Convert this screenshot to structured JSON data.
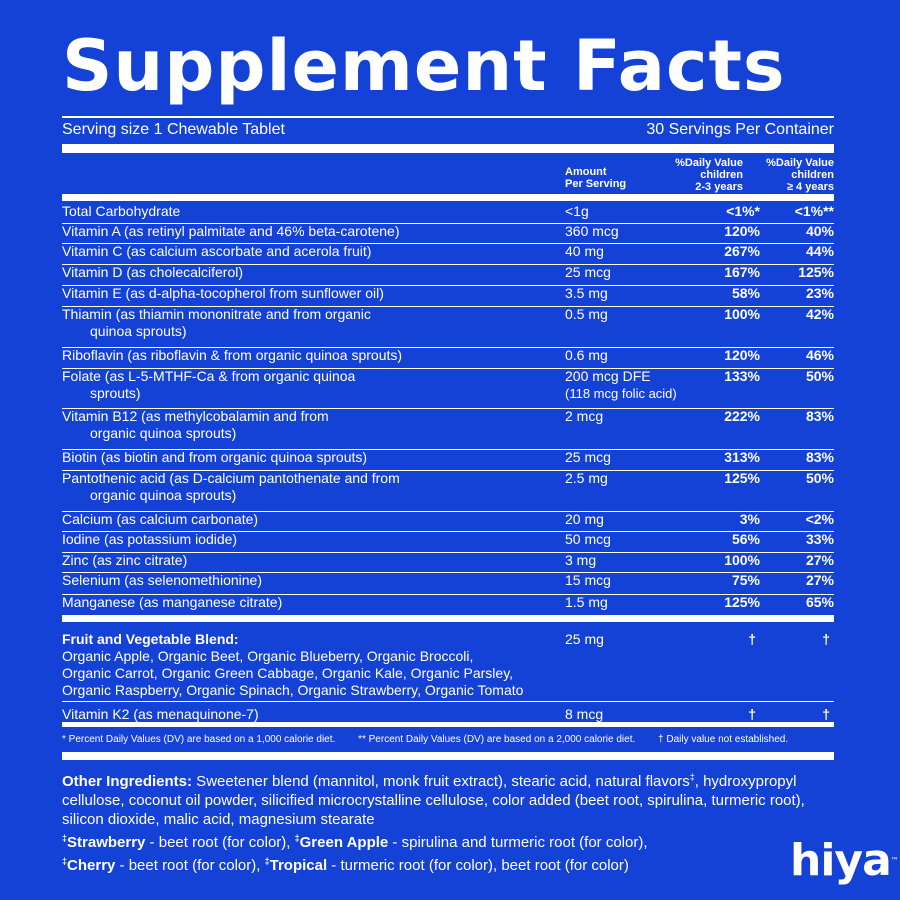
{
  "title": "Supplement Facts",
  "serving_size": "Serving size 1 Chewable Tablet",
  "servings_per_container": "30 Servings Per Container",
  "columns": {
    "amount_1": "Amount",
    "amount_2": "Per Serving",
    "dv1_1": "%Daily Value",
    "dv1_2": "children",
    "dv1_3": "2-3 years",
    "dv2_1": "%Daily Value",
    "dv2_2": "children",
    "dv2_3": "≥ 4 years"
  },
  "nutrients": [
    {
      "name": "Total Carbohydrate",
      "amount": "<1g",
      "dv1": "<1%*",
      "dv2": "<1%**"
    },
    {
      "name": "Vitamin A (as retinyl palmitate and 46% beta-carotene)",
      "amount": "360 mcg",
      "dv1": "120%",
      "dv2": "40%"
    },
    {
      "name": "Vitamin C (as calcium ascorbate and acerola fruit)",
      "amount": "40 mg",
      "dv1": "267%",
      "dv2": "44%"
    },
    {
      "name": "Vitamin D (as cholecalciferol)",
      "amount": "25 mcg",
      "dv1": "167%",
      "dv2": "125%"
    },
    {
      "name": "Vitamin E (as d-alpha-tocopherol from sunflower oil)",
      "amount": "3.5 mg",
      "dv1": "58%",
      "dv2": "23%"
    },
    {
      "name": "Thiamin (as thiamin mononitrate and from organic",
      "name2": "quinoa sprouts)",
      "amount": "0.5 mg",
      "dv1": "100%",
      "dv2": "42%"
    },
    {
      "name": "Riboflavin (as riboflavin & from organic quinoa sprouts)",
      "amount": "0.6 mg",
      "dv1": "120%",
      "dv2": "46%"
    },
    {
      "name": "Folate (as L-5-MTHF-Ca & from organic quinoa",
      "name2": "sprouts)",
      "amount": "200 mcg DFE",
      "amount2": "(118 mcg folic acid)",
      "dv1": "133%",
      "dv2": "50%"
    },
    {
      "name": "Vitamin B12 (as methylcobalamin and from",
      "name2": "organic quinoa sprouts)",
      "amount": "2 mcg",
      "dv1": "222%",
      "dv2": "83%"
    },
    {
      "name": "Biotin (as biotin and from organic quinoa sprouts)",
      "amount": "25 mcg",
      "dv1": "313%",
      "dv2": "83%"
    },
    {
      "name": "Pantothenic acid (as D-calcium pantothenate and from",
      "name2": "organic quinoa sprouts)",
      "amount": "2.5 mg",
      "dv1": "125%",
      "dv2": "50%"
    },
    {
      "name": "Calcium (as calcium carbonate)",
      "amount": "20 mg",
      "dv1": "3%",
      "dv2": "<2%"
    },
    {
      "name": "Iodine (as potassium iodide)",
      "amount": "50 mcg",
      "dv1": "56%",
      "dv2": "33%"
    },
    {
      "name": "Zinc (as zinc citrate)",
      "amount": "3 mg",
      "dv1": "100%",
      "dv2": "27%"
    },
    {
      "name": "Selenium (as selenomethionine)",
      "amount": "15 mcg",
      "dv1": "75%",
      "dv2": "27%"
    },
    {
      "name": "Manganese (as manganese citrate)",
      "amount": "1.5 mg",
      "dv1": "125%",
      "dv2": "65%"
    }
  ],
  "blend": {
    "heading": "Fruit and Vegetable Blend:",
    "line1": "Organic Apple, Organic Beet, Organic Blueberry, Organic Broccoli,",
    "line2": "Organic Carrot, Organic Green Cabbage, Organic Kale, Organic Parsley,",
    "line3": "Organic Raspberry, Organic Spinach, Organic Strawberry, Organic Tomato",
    "amount": "25 mg",
    "dv1": "†",
    "dv2": "†"
  },
  "k2": {
    "name": "Vitamin K2 (as menaquinone-7)",
    "amount": "8 mcg",
    "dv1": "†",
    "dv2": "†"
  },
  "footnotes": {
    "f1": "* Percent Daily Values (DV) are based on a 1,000 calorie diet.",
    "f2": "** Percent Daily Values (DV) are based on a 2,000 calorie diet.",
    "f3": "† Daily value not established."
  },
  "ingredients": {
    "label": "Other Ingredients:",
    "text1": " Sweetener blend (mannitol, monk fruit extract), stearic acid, natural flavors",
    "mark": "‡",
    "text2": ", hydroxypropyl cellulose, coconut oil powder, silicified microcrystalline cellulose, color added (beet root, spirulina, turmeric root), silicon dioxide, malic acid, magnesium stearate",
    "flavors": [
      {
        "mark": "‡",
        "name": "Strawberry",
        "desc": " - beet root (for color), "
      },
      {
        "mark": "‡",
        "name": "Green Apple",
        "desc": " - spirulina and turmeric root (for color),"
      },
      {
        "mark": "‡",
        "name": "Cherry",
        "desc": " - beet root (for color), "
      },
      {
        "mark": "‡",
        "name": "Tropical",
        "desc": " - turmeric root (for color), beet root (for color)"
      }
    ]
  },
  "logo": {
    "text": "hiya",
    "tm": "™"
  }
}
